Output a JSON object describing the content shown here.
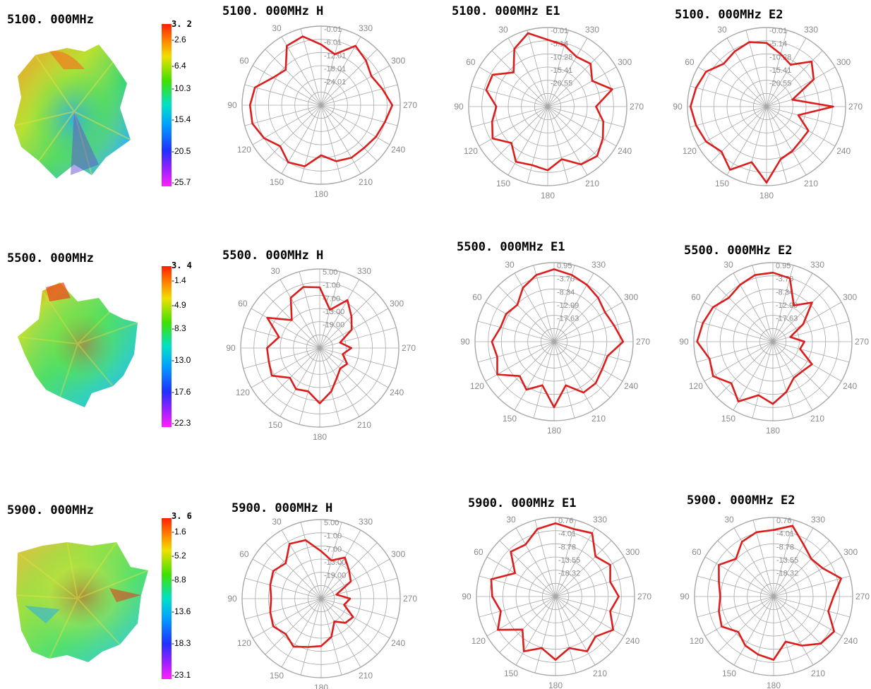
{
  "rows": [
    {
      "freq_label": "5100. 000MHz",
      "colorbar": {
        "max": "3. 2",
        "ticks": [
          "-2.6",
          "-6.4",
          "-10.3",
          "-15.4",
          "-20.5",
          "-25.7"
        ]
      }
    },
    {
      "freq_label": "5500. 000MHz",
      "colorbar": {
        "max": "3. 4",
        "ticks": [
          "-1.4",
          "-4.9",
          "-8.3",
          "-13.0",
          "-17.6",
          "-22.3"
        ]
      }
    },
    {
      "freq_label": "5900. 000MHz",
      "colorbar": {
        "max": "3. 6",
        "ticks": [
          "-1.6",
          "-5.2",
          "-8.8",
          "-13.6",
          "-18.3",
          "-23.1"
        ]
      }
    }
  ],
  "colors": {
    "trace": "#dd1c1c",
    "grid": "#a8a8a8",
    "label": "#8a8a8a"
  },
  "chart_data": [
    {
      "type": "polar",
      "title": "5100. 000MHz  H",
      "radial_ticks": [
        "-0.01",
        "-6.01",
        "-12.01",
        "-18.01",
        "-24.01"
      ],
      "rlim": [
        -30.01,
        -0.01
      ],
      "angle_labels": [
        "30",
        "60",
        "90",
        "120",
        "150",
        "180",
        "210",
        "240",
        "270",
        "300",
        "330"
      ],
      "series": [
        {
          "theta": [
            0,
            15,
            30,
            45,
            60,
            75,
            90,
            105,
            120,
            135,
            150,
            165,
            180,
            195,
            210,
            225,
            240,
            255,
            270,
            285,
            300,
            315,
            330,
            345
          ],
          "values": [
            -7,
            -3,
            -4,
            -11,
            -9,
            -4,
            -3,
            -3,
            -5,
            -8,
            -5,
            -6,
            -11,
            -8,
            -7,
            -7,
            -6,
            -5,
            -3,
            -6,
            -8,
            -6,
            -4,
            -10
          ]
        }
      ]
    },
    {
      "type": "polar",
      "title": "5100. 000MHz  E1",
      "radial_ticks": [
        "-0.01",
        "-5.14",
        "-10.28",
        "-15.41",
        "-20.55"
      ],
      "rlim": [
        -25.69,
        -0.01
      ],
      "angle_labels": [
        "30",
        "60",
        "90",
        "120",
        "150",
        "180",
        "210",
        "240",
        "270",
        "300",
        "330"
      ],
      "series": [
        {
          "theta": [
            0,
            15,
            30,
            45,
            60,
            75,
            90,
            105,
            120,
            135,
            150,
            165,
            180,
            195,
            210,
            225,
            240,
            255,
            270,
            285,
            300,
            315,
            330,
            345
          ],
          "values": [
            -4,
            -1,
            -4,
            -10,
            -5,
            -5,
            -9,
            -7,
            -5,
            -9,
            -5,
            -6,
            -5,
            -8,
            -4,
            -3,
            -5,
            -7,
            -10,
            -4,
            -9,
            -6,
            -7,
            -5
          ]
        }
      ]
    },
    {
      "type": "polar",
      "title": "5100. 000MHz  E2",
      "radial_ticks": [
        "-0.01",
        "-5.14",
        "-10.28",
        "-15.41",
        "-20.55"
      ],
      "rlim": [
        -25.69,
        -0.01
      ],
      "angle_labels": [
        "30",
        "60",
        "90",
        "120",
        "150",
        "180",
        "210",
        "240",
        "270",
        "300",
        "330"
      ],
      "series": [
        {
          "theta": [
            0,
            15,
            30,
            45,
            60,
            75,
            90,
            105,
            120,
            135,
            150,
            165,
            180,
            195,
            210,
            225,
            240,
            255,
            270,
            285,
            300,
            315,
            330,
            345
          ],
          "values": [
            -5,
            -4,
            -5,
            -6,
            -3,
            -2,
            -1,
            -2,
            -3,
            -5,
            -2,
            -7,
            -1,
            -8,
            -9,
            -10,
            -10,
            -15,
            -4,
            -17,
            -8,
            -5,
            -10,
            -8
          ]
        }
      ]
    },
    {
      "type": "polar",
      "title": "5500. 000MHz  H",
      "radial_ticks": [
        "5.00",
        "-1.00",
        "-7.00",
        "-13.00",
        "-19.00"
      ],
      "rlim": [
        -25.0,
        5.0
      ],
      "angle_labels": [
        "30",
        "60",
        "90",
        "120",
        "150",
        "180",
        "210",
        "240",
        "270",
        "300",
        "330"
      ],
      "series": [
        {
          "theta": [
            0,
            15,
            30,
            45,
            60,
            75,
            90,
            105,
            120,
            135,
            150,
            165,
            180,
            195,
            210,
            225,
            240,
            255,
            270,
            285,
            300,
            315,
            330,
            345
          ],
          "values": [
            -2,
            -1,
            -3,
            -10,
            -2,
            -9,
            -5,
            -5,
            -4,
            -9,
            -7,
            -8,
            -4,
            -8,
            -12,
            -14,
            -13,
            -16,
            -13,
            -17,
            -11,
            -8,
            -4,
            -10
          ]
        }
      ]
    },
    {
      "type": "polar",
      "title": "5500. 000MHz  E1",
      "radial_ticks": [
        "0.95",
        "-3.70",
        "-8.34",
        "-12.99",
        "-17.63"
      ],
      "rlim": [
        -22.27,
        0.95
      ],
      "angle_labels": [
        "30",
        "60",
        "90",
        "120",
        "150",
        "180",
        "210",
        "240",
        "270",
        "300",
        "330"
      ],
      "series": [
        {
          "theta": [
            0,
            15,
            30,
            45,
            60,
            75,
            90,
            105,
            120,
            135,
            150,
            165,
            180,
            195,
            210,
            225,
            240,
            255,
            270,
            285,
            300,
            315,
            330,
            345
          ],
          "values": [
            -1,
            -2,
            -4,
            -7,
            -6,
            -6,
            -4,
            -5,
            -3,
            -8,
            -6,
            -9,
            -3,
            -9,
            -5,
            -5,
            -6,
            -6,
            -2,
            -4,
            -5,
            -4,
            -3,
            -2
          ]
        }
      ]
    },
    {
      "type": "polar",
      "title": "5500. 000MHz  E2",
      "radial_ticks": [
        "0.95",
        "-3.70",
        "-8.34",
        "-12.99",
        "-17.63"
      ],
      "rlim": [
        -22.27,
        0.95
      ],
      "angle_labels": [
        "30",
        "60",
        "90",
        "120",
        "150",
        "180",
        "210",
        "240",
        "270",
        "300",
        "330"
      ],
      "series": [
        {
          "theta": [
            0,
            15,
            30,
            45,
            60,
            75,
            90,
            105,
            120,
            135,
            150,
            165,
            180,
            195,
            210,
            225,
            240,
            255,
            270,
            285,
            300,
            315,
            330,
            345
          ],
          "values": [
            -2,
            -2,
            -3,
            -4,
            -2,
            -1,
            0,
            -3,
            -2,
            -5,
            -2,
            -6,
            -4,
            -7,
            -10,
            -10,
            -9,
            -14,
            -13,
            -17,
            -12,
            -6,
            -10,
            -3
          ]
        }
      ]
    },
    {
      "type": "polar",
      "title": "5900. 000MHz  H",
      "radial_ticks": [
        "5.00",
        "-1.00",
        "-7.00",
        "-13.00",
        "-19.00"
      ],
      "rlim": [
        -25.0,
        5.0
      ],
      "angle_labels": [
        "30",
        "60",
        "90",
        "120",
        "150",
        "180",
        "210",
        "240",
        "270",
        "300",
        "330"
      ],
      "series": [
        {
          "theta": [
            0,
            15,
            30,
            45,
            60,
            75,
            90,
            105,
            120,
            135,
            150,
            165,
            180,
            195,
            210,
            225,
            240,
            255,
            270,
            285,
            300,
            315,
            330,
            345
          ],
          "values": [
            -7,
            -2,
            -1,
            -6,
            -4,
            -5,
            -6,
            -5,
            -4,
            -6,
            -4,
            -6,
            -7,
            -10,
            -15,
            -12,
            -11,
            -16,
            -14,
            -19,
            -12,
            -10,
            -7,
            -10
          ]
        }
      ]
    },
    {
      "type": "polar",
      "title": "5900. 000MHz  E1",
      "radial_ticks": [
        "0.76",
        "-4.01",
        "-8.78",
        "-13.55",
        "-18.32"
      ],
      "rlim": [
        -23.09,
        0.76
      ],
      "angle_labels": [
        "30",
        "60",
        "90",
        "120",
        "150",
        "180",
        "210",
        "240",
        "270",
        "300",
        "330"
      ],
      "series": [
        {
          "theta": [
            0,
            15,
            30,
            45,
            60,
            75,
            90,
            105,
            120,
            135,
            150,
            165,
            180,
            195,
            210,
            225,
            240,
            255,
            270,
            285,
            300,
            315,
            330,
            345
          ],
          "values": [
            -1,
            -2,
            -5,
            -4,
            -9,
            -3,
            -4,
            -6,
            -3,
            -9,
            -4,
            -7,
            -4,
            -7,
            -4,
            -6,
            -3,
            -6,
            -4,
            -6,
            -4,
            -6,
            -1,
            -2
          ]
        }
      ]
    },
    {
      "type": "polar",
      "title": "5900. 000MHz  E2",
      "radial_ticks": [
        "0.76",
        "-4.01",
        "-8.78",
        "-13.55",
        "-18.32"
      ],
      "rlim": [
        -23.09,
        0.76
      ],
      "angle_labels": [
        "30",
        "60",
        "90",
        "120",
        "150",
        "180",
        "210",
        "240",
        "270",
        "300",
        "330"
      ],
      "series": [
        {
          "theta": [
            0,
            15,
            30,
            45,
            60,
            75,
            90,
            105,
            120,
            135,
            150,
            165,
            180,
            195,
            210,
            225,
            240,
            255,
            270,
            285,
            300,
            315,
            330,
            345
          ],
          "values": [
            -3,
            -3,
            -4,
            -7,
            -4,
            -6,
            -7,
            -6,
            -5,
            -8,
            -6,
            -5,
            -4,
            -9,
            -6,
            -3,
            -2,
            -6,
            -5,
            -2,
            -6,
            -7,
            -5,
            -1
          ]
        }
      ]
    }
  ]
}
